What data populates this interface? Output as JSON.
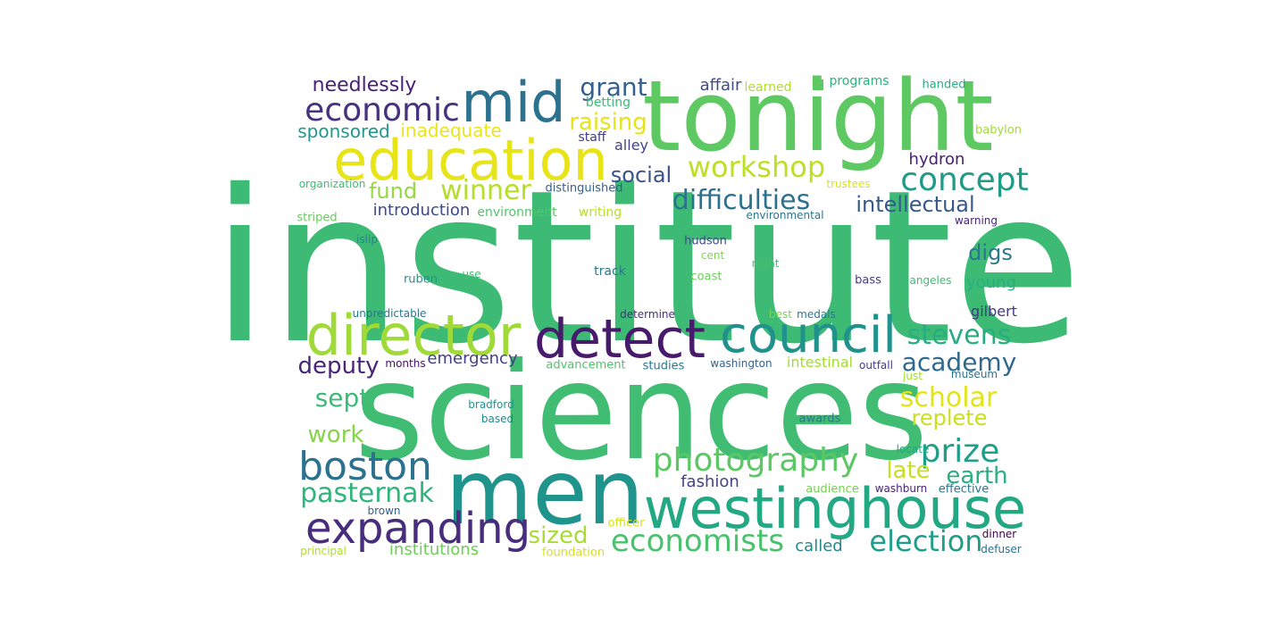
{
  "words": [
    {
      "text": "institute",
      "color": "#3dbb74"
    },
    {
      "text": "sciences",
      "color": "#40bd72"
    },
    {
      "text": "tonight",
      "color": "#5ec962"
    },
    {
      "text": "men",
      "color": "#1f948c"
    },
    {
      "text": "westinghouse",
      "color": "#23a884"
    },
    {
      "text": "education",
      "color": "#e7e419"
    },
    {
      "text": "director",
      "color": "#a0da39"
    },
    {
      "text": "detect",
      "color": "#481a6c"
    },
    {
      "text": "council",
      "color": "#21918c"
    },
    {
      "text": "mid",
      "color": "#2c728e"
    },
    {
      "text": "expanding",
      "color": "#472d7b"
    },
    {
      "text": "boston",
      "color": "#2c718e"
    },
    {
      "text": "economic",
      "color": "#46327e"
    },
    {
      "text": "photography",
      "color": "#5cc863"
    },
    {
      "text": "economists",
      "color": "#4ac16d"
    },
    {
      "text": "workshop",
      "color": "#bddf26"
    },
    {
      "text": "concept",
      "color": "#1e9c89"
    },
    {
      "text": "election",
      "color": "#1f9e89"
    },
    {
      "text": "pasternak",
      "color": "#2fb47c"
    },
    {
      "text": "stevens",
      "color": "#27ad81"
    },
    {
      "text": "academy",
      "color": "#31688e"
    },
    {
      "text": "prize",
      "color": "#1f9f88"
    },
    {
      "text": "scholar",
      "color": "#e3e418"
    },
    {
      "text": "winner",
      "color": "#b5de2b"
    },
    {
      "text": "grant",
      "color": "#355f8d"
    },
    {
      "text": "difficulties",
      "color": "#2c728e"
    },
    {
      "text": "sized",
      "color": "#a8db34"
    },
    {
      "text": "sept",
      "color": "#3bbb75"
    },
    {
      "text": "earth",
      "color": "#29af7f"
    },
    {
      "text": "replete",
      "color": "#c8e020"
    },
    {
      "text": "raising",
      "color": "#e5e419"
    },
    {
      "text": "work",
      "color": "#86d549"
    },
    {
      "text": "late",
      "color": "#c5e021"
    },
    {
      "text": "deputy",
      "color": "#482576"
    },
    {
      "text": "intellectual",
      "color": "#38598c"
    },
    {
      "text": "social",
      "color": "#3b528b"
    },
    {
      "text": "needlessly",
      "color": "#482173"
    },
    {
      "text": "fund",
      "color": "#95d840"
    },
    {
      "text": "digs",
      "color": "#2a788e"
    },
    {
      "text": "sponsored",
      "color": "#1f988b"
    },
    {
      "text": "inadequate",
      "color": "#eae51a"
    },
    {
      "text": "emergency",
      "color": "#433e85"
    },
    {
      "text": "called",
      "color": "#24878e"
    },
    {
      "text": "introduction",
      "color": "#3e4989"
    },
    {
      "text": "young",
      "color": "#28ae80"
    },
    {
      "text": "fashion",
      "color": "#414487"
    },
    {
      "text": "institutions",
      "color": "#6ece58"
    },
    {
      "text": "intestinal",
      "color": "#a5db36"
    },
    {
      "text": "affair",
      "color": "#3e4c8a"
    },
    {
      "text": "hydron",
      "color": "#481f70"
    },
    {
      "text": "alley",
      "color": "#414287"
    },
    {
      "text": "gilbert",
      "color": "#453781"
    },
    {
      "text": "staff",
      "color": "#443983"
    },
    {
      "text": "betting",
      "color": "#3aba76"
    },
    {
      "text": "learned",
      "color": "#b2dd2d"
    },
    {
      "text": "programs",
      "color": "#2db27d"
    },
    {
      "text": "handed",
      "color": "#26ad81"
    },
    {
      "text": "babylon",
      "color": "#a0da39"
    },
    {
      "text": "organization",
      "color": "#3fbc73"
    },
    {
      "text": "distinguished",
      "color": "#355e8d"
    },
    {
      "text": "trustees",
      "color": "#d8e219"
    },
    {
      "text": "striped",
      "color": "#67cc5c"
    },
    {
      "text": "environment",
      "color": "#52c569"
    },
    {
      "text": "writing",
      "color": "#b8de29"
    },
    {
      "text": "environmental",
      "color": "#2a768e"
    },
    {
      "text": "warning",
      "color": "#482475"
    },
    {
      "text": "islip",
      "color": "#26828e"
    },
    {
      "text": "hudson",
      "color": "#3e4a89"
    },
    {
      "text": "cent",
      "color": "#7fd34e"
    },
    {
      "text": "track",
      "color": "#2a788e"
    },
    {
      "text": "night",
      "color": "#44bf70"
    },
    {
      "text": "ruben",
      "color": "#21918c"
    },
    {
      "text": "use",
      "color": "#3fbc73"
    },
    {
      "text": "coast",
      "color": "#6ccd5a"
    },
    {
      "text": "bass",
      "color": "#433d84"
    },
    {
      "text": "angeles",
      "color": "#3dbc74"
    },
    {
      "text": "unpredictable",
      "color": "#2b758e"
    },
    {
      "text": "determine",
      "color": "#472f7d"
    },
    {
      "text": "best",
      "color": "#7ad151"
    },
    {
      "text": "medals",
      "color": "#2a778e"
    },
    {
      "text": "months",
      "color": "#471063"
    },
    {
      "text": "advancement",
      "color": "#4ec36b"
    },
    {
      "text": "studies",
      "color": "#2a788e"
    },
    {
      "text": "washington",
      "color": "#33638d"
    },
    {
      "text": "outfall",
      "color": "#433e85"
    },
    {
      "text": "just",
      "color": "#a2da37"
    },
    {
      "text": "museum",
      "color": "#2d708e"
    },
    {
      "text": "bradford",
      "color": "#1f958b"
    },
    {
      "text": "based",
      "color": "#24878e"
    },
    {
      "text": "awards",
      "color": "#29798e"
    },
    {
      "text": "locate",
      "color": "#22a785"
    },
    {
      "text": "audience",
      "color": "#75d054"
    },
    {
      "text": "washburn",
      "color": "#482475"
    },
    {
      "text": "effective",
      "color": "#2a778e"
    },
    {
      "text": "brown",
      "color": "#355f8d"
    },
    {
      "text": "officer",
      "color": "#d2e21b"
    },
    {
      "text": "dinner",
      "color": "#440154"
    },
    {
      "text": "principal",
      "color": "#b0dd2f"
    },
    {
      "text": "foundation",
      "color": "#d8e219"
    },
    {
      "text": "defuser",
      "color": "#2e6e8e"
    }
  ]
}
